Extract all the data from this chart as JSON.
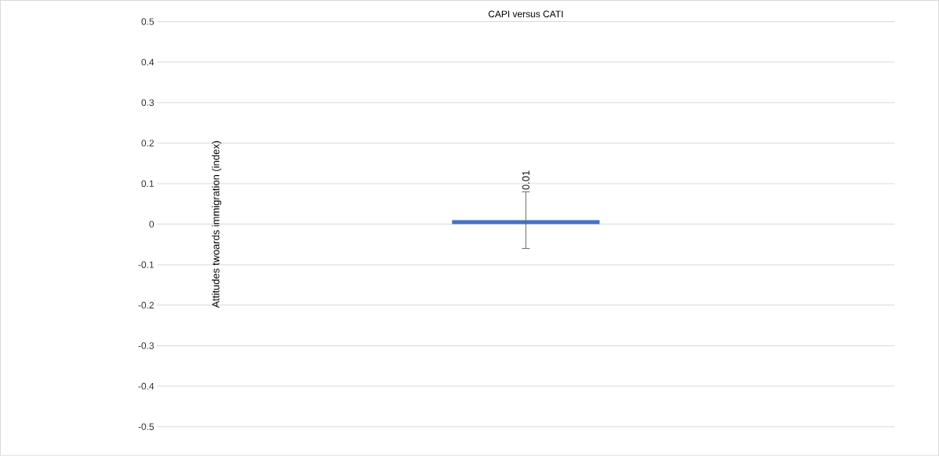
{
  "chart_data": {
    "type": "bar",
    "title": "CAPI versus CATI",
    "ylabel": "Attitudes twoards immigration (index)",
    "categories": [
      null
    ],
    "values": [
      0.01
    ],
    "errors": [
      [
        -0.06,
        0.08
      ]
    ],
    "color": "#4472c4",
    "data_labels": true,
    "ylim": [
      -0.5,
      0.5
    ],
    "yticks": [
      -0.5,
      -0.4,
      -0.3,
      -0.2,
      -0.1,
      0,
      0.1,
      0.2,
      0.3,
      0.4,
      0.5
    ],
    "grid": "y"
  }
}
